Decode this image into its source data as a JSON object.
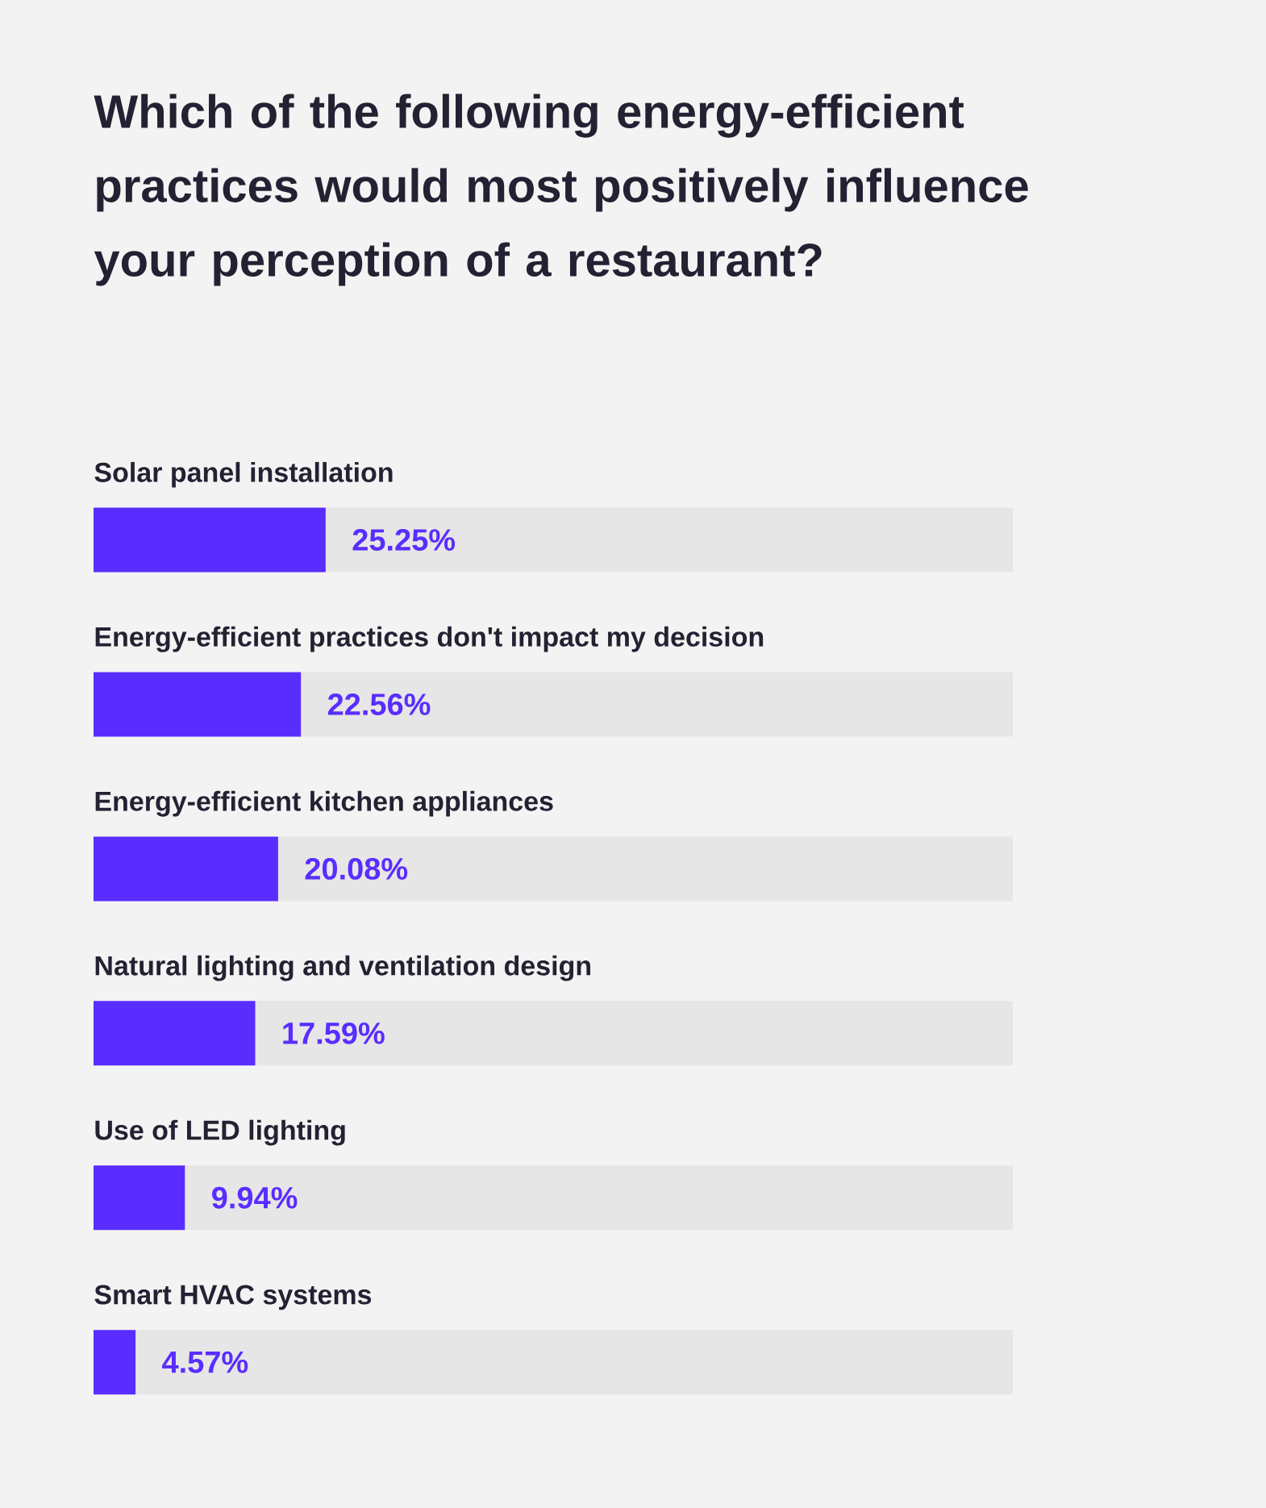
{
  "chart_data": {
    "type": "bar",
    "orientation": "horizontal",
    "stacked": true,
    "title": "Which of the following energy-efficient practices would most positively influence your perception of a restaurant?",
    "categories": [
      "Solar panel installation",
      "Energy-efficient practices don't impact my decision",
      "Energy-efficient kitchen appliances",
      "Natural lighting and ventilation design",
      "Use of LED lighting",
      "Smart HVAC systems"
    ],
    "series": [
      {
        "color": "#5a2dff",
        "values": [
          25.25,
          22.56,
          20.08,
          17.59,
          9.94,
          4.57
        ],
        "value_labels": [
          "25.25%",
          "22.56%",
          "20.08%",
          "17.59%",
          "9.94%",
          "4.57%"
        ]
      },
      {
        "color": "#e6e6e6",
        "values": [
          74.75,
          77.44,
          79.92,
          82.41,
          90.06,
          95.43
        ]
      }
    ],
    "xlim": [
      0,
      100
    ]
  }
}
